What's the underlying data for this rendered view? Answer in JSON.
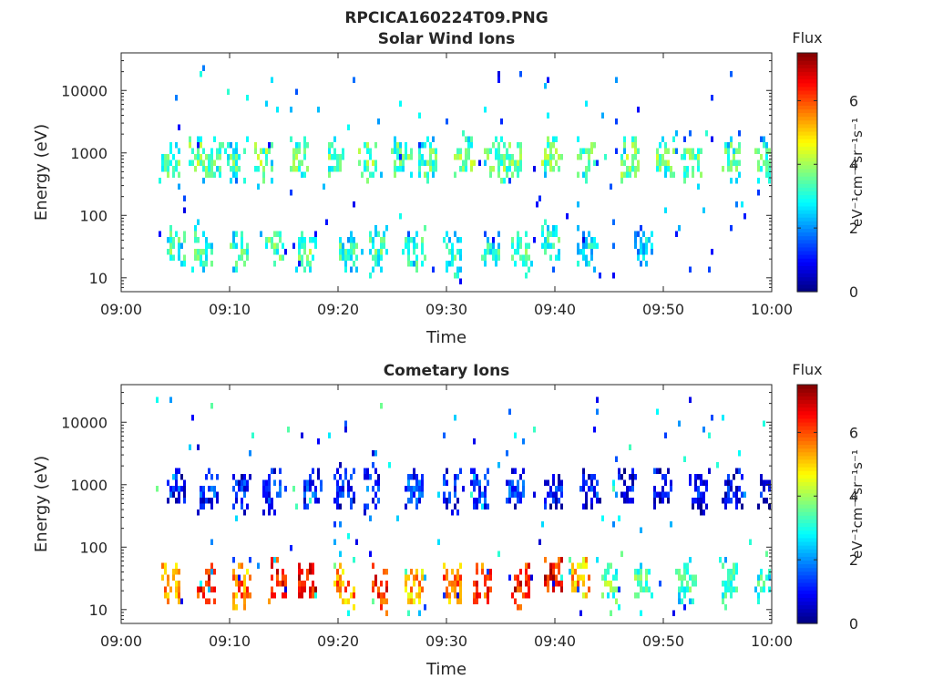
{
  "figure": {
    "title": "RPCICA160224T09.PNG"
  },
  "colors": {
    "axis": "#262626",
    "colormap": [
      "#00007f",
      "#0000ff",
      "#007fff",
      "#00ffff",
      "#7fff7f",
      "#ffff00",
      "#ff7f00",
      "#ff0000",
      "#7f0000"
    ]
  },
  "colorbar": {
    "label": "Flux",
    "unit": "eV⁻¹cm⁻²sr⁻¹s⁻¹",
    "ticks": [
      "0",
      "2",
      "4",
      "6"
    ],
    "range": [
      0,
      7.5
    ]
  },
  "chart_data": [
    {
      "type": "heatmap",
      "title": "Solar Wind Ions",
      "xlabel": "Time",
      "ylabel": "Energy (eV)",
      "x_range": [
        "09:00",
        "10:00"
      ],
      "x_ticks": [
        "09:00",
        "09:10",
        "09:20",
        "09:30",
        "09:40",
        "09:50",
        "10:00"
      ],
      "y_scale": "log",
      "y_range": [
        6,
        40000
      ],
      "y_ticks": [
        "10",
        "100",
        "1000",
        "10000"
      ],
      "z_range": [
        0,
        7.5
      ],
      "bursts": [
        {
          "t": 4.5,
          "e": 850,
          "flux": 3.6
        },
        {
          "t": 7.0,
          "e": 900,
          "flux": 3.9
        },
        {
          "t": 8.3,
          "e": 850,
          "flux": 3.5
        },
        {
          "t": 10.4,
          "e": 800,
          "flux": 3.4
        },
        {
          "t": 13.0,
          "e": 900,
          "flux": 3.9
        },
        {
          "t": 16.3,
          "e": 900,
          "flux": 3.7
        },
        {
          "t": 19.6,
          "e": 900,
          "flux": 3.6
        },
        {
          "t": 22.7,
          "e": 850,
          "flux": 3.8
        },
        {
          "t": 25.8,
          "e": 900,
          "flux": 3.6
        },
        {
          "t": 28.1,
          "e": 850,
          "flux": 3.5
        },
        {
          "t": 31.5,
          "e": 900,
          "flux": 3.7
        },
        {
          "t": 34.3,
          "e": 800,
          "flux": 3.6
        },
        {
          "t": 36.0,
          "e": 900,
          "flux": 3.8
        },
        {
          "t": 39.6,
          "e": 900,
          "flux": 3.7
        },
        {
          "t": 42.7,
          "e": 850,
          "flux": 3.7
        },
        {
          "t": 46.8,
          "e": 850,
          "flux": 3.9
        },
        {
          "t": 50.0,
          "e": 900,
          "flux": 3.7
        },
        {
          "t": 52.5,
          "e": 850,
          "flux": 3.7
        },
        {
          "t": 56.2,
          "e": 900,
          "flux": 3.5
        },
        {
          "t": 59.3,
          "e": 850,
          "flux": 3.5
        },
        {
          "t": 5.0,
          "e": 32,
          "flux": 3.4
        },
        {
          "t": 7.5,
          "e": 32,
          "flux": 3.4
        },
        {
          "t": 10.8,
          "e": 28,
          "flux": 3.3
        },
        {
          "t": 14.0,
          "e": 35,
          "flux": 3.5
        },
        {
          "t": 17.0,
          "e": 30,
          "flux": 3.6
        },
        {
          "t": 20.8,
          "e": 28,
          "flux": 3.2
        },
        {
          "t": 23.5,
          "e": 30,
          "flux": 3.3
        },
        {
          "t": 27.0,
          "e": 32,
          "flux": 3.3
        },
        {
          "t": 30.5,
          "e": 30,
          "flux": 3.3
        },
        {
          "t": 34.0,
          "e": 28,
          "flux": 3.2
        },
        {
          "t": 36.8,
          "e": 30,
          "flux": 3.3
        },
        {
          "t": 39.5,
          "e": 45,
          "flux": 3.1
        },
        {
          "t": 42.8,
          "e": 32,
          "flux": 2.9
        },
        {
          "t": 48.0,
          "e": 35,
          "flux": 2.6
        }
      ]
    },
    {
      "type": "heatmap",
      "title": "Cometary Ions",
      "xlabel": "Time",
      "ylabel": "Energy (eV)",
      "x_range": [
        "09:00",
        "10:00"
      ],
      "x_ticks": [
        "09:00",
        "09:10",
        "09:20",
        "09:30",
        "09:40",
        "09:50",
        "10:00"
      ],
      "y_scale": "log",
      "y_range": [
        6,
        40000
      ],
      "y_ticks": [
        "10",
        "100",
        "1000",
        "10000"
      ],
      "z_range": [
        0,
        7.5
      ],
      "bursts": [
        {
          "t": 4.5,
          "e": 28,
          "flux": 5.5
        },
        {
          "t": 7.8,
          "e": 28,
          "flux": 6.5
        },
        {
          "t": 11.0,
          "e": 25,
          "flux": 5.8
        },
        {
          "t": 14.3,
          "e": 32,
          "flux": 6.6
        },
        {
          "t": 17.0,
          "e": 30,
          "flux": 6.8
        },
        {
          "t": 20.5,
          "e": 25,
          "flux": 5.8
        },
        {
          "t": 23.8,
          "e": 25,
          "flux": 6.4
        },
        {
          "t": 27.0,
          "e": 28,
          "flux": 5.4
        },
        {
          "t": 30.5,
          "e": 28,
          "flux": 6.0
        },
        {
          "t": 33.2,
          "e": 28,
          "flux": 6.3
        },
        {
          "t": 36.8,
          "e": 28,
          "flux": 6.6
        },
        {
          "t": 39.8,
          "e": 40,
          "flux": 6.7
        },
        {
          "t": 42.2,
          "e": 35,
          "flux": 5.4
        },
        {
          "t": 45.0,
          "e": 30,
          "flux": 3.7
        },
        {
          "t": 48.0,
          "e": 30,
          "flux": 3.5
        },
        {
          "t": 52.0,
          "e": 30,
          "flux": 3.3
        },
        {
          "t": 56.0,
          "e": 30,
          "flux": 3.3
        },
        {
          "t": 59.3,
          "e": 30,
          "flux": 3.1
        },
        {
          "t": 5.0,
          "e": 900,
          "flux": 1.2
        },
        {
          "t": 8.0,
          "e": 1000,
          "flux": 1.4
        },
        {
          "t": 11.0,
          "e": 850,
          "flux": 1.3
        },
        {
          "t": 13.8,
          "e": 900,
          "flux": 1.3
        },
        {
          "t": 17.5,
          "e": 900,
          "flux": 1.5
        },
        {
          "t": 20.5,
          "e": 1000,
          "flux": 1.3
        },
        {
          "t": 23.0,
          "e": 900,
          "flux": 1.4
        },
        {
          "t": 27.0,
          "e": 1000,
          "flux": 1.6
        },
        {
          "t": 30.5,
          "e": 900,
          "flux": 1.4
        },
        {
          "t": 33.0,
          "e": 1000,
          "flux": 1.4
        },
        {
          "t": 36.2,
          "e": 900,
          "flux": 1.4
        },
        {
          "t": 39.8,
          "e": 900,
          "flux": 1.1
        },
        {
          "t": 43.2,
          "e": 900,
          "flux": 1.3
        },
        {
          "t": 46.5,
          "e": 1100,
          "flux": 1.0
        },
        {
          "t": 49.8,
          "e": 1000,
          "flux": 1.0
        },
        {
          "t": 53.2,
          "e": 900,
          "flux": 1.1
        },
        {
          "t": 56.3,
          "e": 1000,
          "flux": 1.1
        },
        {
          "t": 59.5,
          "e": 900,
          "flux": 1.1
        }
      ]
    }
  ]
}
